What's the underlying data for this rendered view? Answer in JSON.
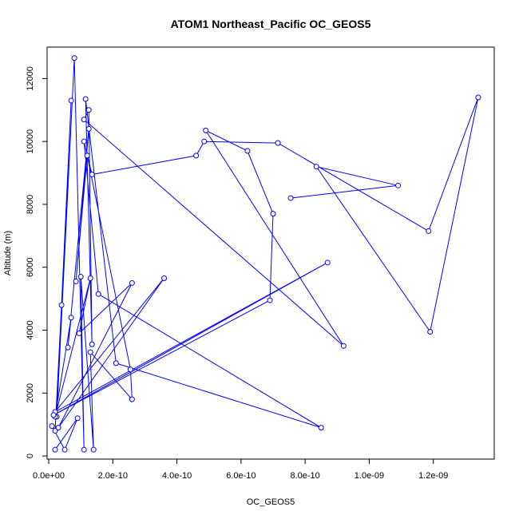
{
  "chart_data": {
    "type": "line",
    "title": "ATOM1 Northeast_Pacific OC_GEOS5",
    "xlabel": "OC_GEOS5",
    "ylabel": "Altitude (m)",
    "xlim": [
      -5e-12,
      1.39e-09
    ],
    "ylim": [
      -100,
      13000
    ],
    "x_ticks": [
      0,
      2e-10,
      4e-10,
      6e-10,
      8e-10,
      1e-09,
      1.2e-09
    ],
    "x_tick_labels": [
      "0.0e+00",
      "2.0e-10",
      "4.0e-10",
      "6.0e-10",
      "8.0e-10",
      "1.0e-09",
      "1.2e-09"
    ],
    "y_ticks": [
      0,
      2000,
      4000,
      6000,
      8000,
      10000,
      12000
    ],
    "y_tick_labels": [
      "0",
      "2000",
      "4000",
      "6000",
      "8000",
      "10000",
      "12000"
    ],
    "grid": false,
    "color": "#0000ff",
    "series": [
      {
        "x": [
          2e-11,
          9e-11,
          5e-11,
          1e-11,
          2e-11,
          4e-11,
          7e-11,
          2.5e-11,
          8e-11,
          1.1e-10,
          1e-10,
          1.4e-10,
          1.3e-10,
          2.6e-10,
          2.55e-10,
          1.2e-10,
          8.5e-11,
          1.25e-10,
          6e-11,
          7e-11,
          2e-11,
          1.3e-10,
          9.5e-11,
          2.6e-10,
          3e-11,
          3.6e-10,
          2e-11,
          8.7e-10,
          1.5e-11,
          6.9e-10,
          7e-10,
          6.2e-10,
          4.9e-10,
          9.2e-10,
          1.1e-10,
          1.25e-10,
          1.35e-10,
          1.15e-10,
          2.1e-10,
          8.5e-10,
          1.55e-10,
          1.1e-10,
          1.35e-10,
          4.6e-10,
          4.85e-10,
          7.15e-10,
          1.185e-09,
          1.34e-09,
          1.19e-09,
          8.35e-10,
          1.09e-09,
          7.55e-10
        ],
        "y": [
          200,
          1200,
          200,
          950,
          800,
          4800,
          11300,
          1250,
          12650,
          200,
          5700,
          200,
          3300,
          1800,
          2750,
          9550,
          5550,
          10400,
          3450,
          4400,
          1250,
          5650,
          3900,
          5500,
          900,
          5650,
          1400,
          6150,
          1300,
          4950,
          7700,
          9700,
          10350,
          3500,
          10700,
          11000,
          3550,
          11350,
          2950,
          900,
          5150,
          10000,
          8950,
          9550,
          10000,
          9950,
          7150,
          11400,
          3950,
          9200,
          8600,
          8200
        ]
      }
    ]
  }
}
